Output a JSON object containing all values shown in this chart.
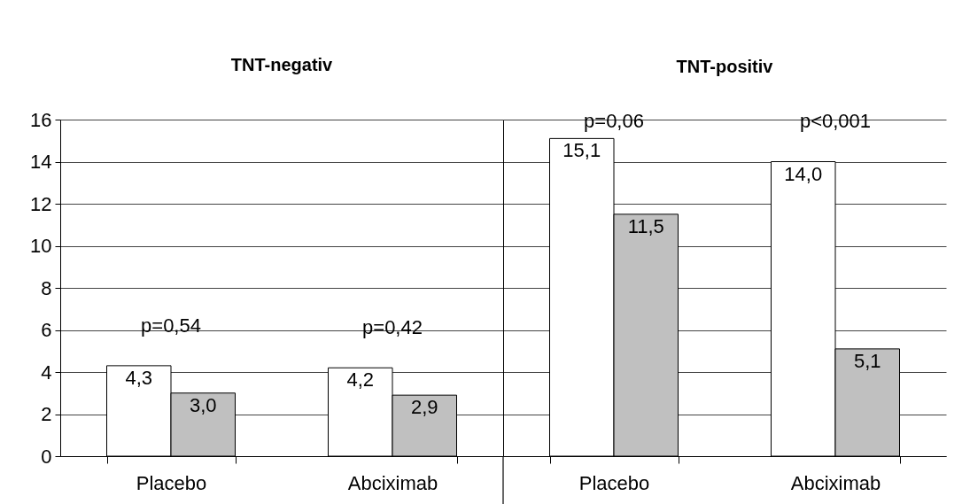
{
  "chart_data": [
    {
      "type": "bar",
      "title": "TNT-negativ",
      "categories": [
        "Placebo",
        "Abciximab"
      ],
      "series": [
        {
          "color": "#ffffff",
          "values": [
            4.3,
            4.2
          ],
          "value_labels": [
            "4,3",
            "4,2"
          ]
        },
        {
          "color": "#c0c0c0",
          "values": [
            3.0,
            2.9
          ],
          "value_labels": [
            "3,0",
            "2,9"
          ]
        }
      ],
      "ylim": [
        0,
        16
      ],
      "yticks": [
        0,
        2,
        4,
        6,
        8,
        10,
        12,
        14,
        16
      ],
      "grid": "y",
      "legend": false,
      "annotations": [
        "p=0,54",
        "p=0,42"
      ]
    },
    {
      "type": "bar",
      "title": "TNT-positiv",
      "categories": [
        "Placebo",
        "Abciximab"
      ],
      "series": [
        {
          "color": "#ffffff",
          "values": [
            15.1,
            14.0
          ],
          "value_labels": [
            "15,1",
            "14,0"
          ]
        },
        {
          "color": "#c0c0c0",
          "values": [
            11.5,
            5.1
          ],
          "value_labels": [
            "11,5",
            "5,1"
          ]
        }
      ],
      "ylim": [
        0,
        16
      ],
      "yticks": [
        0,
        2,
        4,
        6,
        8,
        10,
        12,
        14,
        16
      ],
      "grid": "y",
      "legend": false,
      "tick_labels": "x",
      "annotations": [
        "p=0,06",
        "p<0,001"
      ]
    }
  ]
}
